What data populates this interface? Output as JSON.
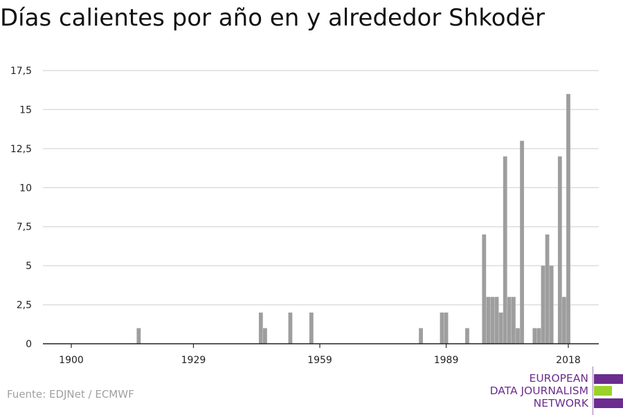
{
  "title": "Días calientes por año en y alrededor Shkodër",
  "source": "Fuente: EDJNet / ECMWF",
  "logo": {
    "line1": "EUROPEAN",
    "line2": "DATA JOURNALISM",
    "line3": "NETWORK",
    "color_purple": "#6b2d8f",
    "color_green": "#9ad12b"
  },
  "colors": {
    "bar": "#9e9e9e",
    "grid": "#dddddd",
    "axis": "#222222",
    "tick_text": "#222222"
  },
  "chart_data": {
    "type": "bar",
    "title": "Días calientes por año en y alrededor Shkodër",
    "xlabel": "",
    "ylabel": "",
    "xlim": [
      1894,
      2025
    ],
    "ylim": [
      0,
      17.5
    ],
    "grid": true,
    "x_ticks": [
      1900,
      1929,
      1959,
      1989,
      2018
    ],
    "x_tick_labels": [
      "1900",
      "1929",
      "1959",
      "1989",
      "2018"
    ],
    "y_ticks": [
      0,
      2.5,
      5,
      7.5,
      10,
      12.5,
      15,
      17.5
    ],
    "y_tick_labels": [
      "0",
      "2,5",
      "5",
      "7,5",
      "10",
      "12,5",
      "15",
      "17,5"
    ],
    "series": [
      {
        "x": [
          1916,
          1945,
          1946,
          1952,
          1957,
          1983,
          1988,
          1989,
          1994,
          1998,
          1999,
          2000,
          2001,
          2002,
          2003,
          2004,
          2005,
          2006,
          2007,
          2008,
          2010,
          2011,
          2012,
          2013,
          2014,
          2015,
          2016,
          2017,
          2018
        ],
        "values": [
          1,
          2,
          1,
          2,
          2,
          1,
          2,
          2,
          1,
          7,
          3,
          3,
          3,
          2,
          12,
          3,
          3,
          1,
          13,
          0,
          1,
          1,
          5,
          7,
          5,
          0,
          12,
          3,
          16
        ]
      }
    ]
  }
}
